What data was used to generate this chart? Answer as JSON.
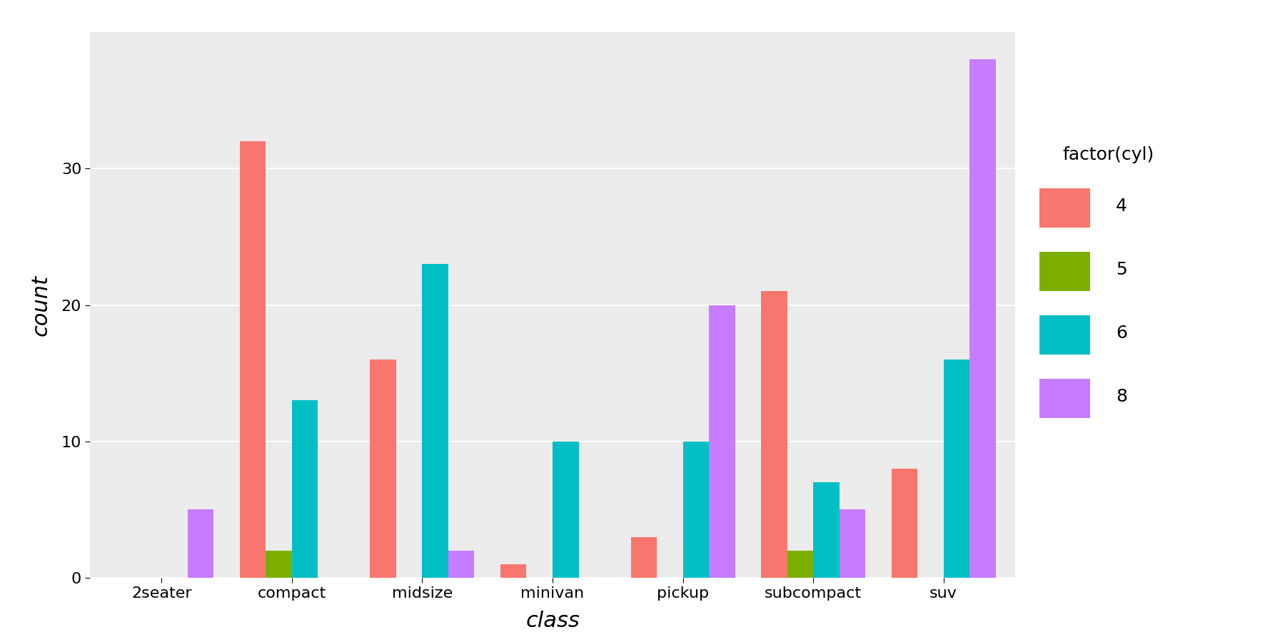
{
  "categories": [
    "2seater",
    "compact",
    "midsize",
    "minivan",
    "pickup",
    "subcompact",
    "suv"
  ],
  "cyl_labels": [
    "4",
    "5",
    "6",
    "8"
  ],
  "cyl_colors": [
    "#F8766D",
    "#7CAE00",
    "#00BFC4",
    "#C77CFF"
  ],
  "counts": {
    "2seater": {
      "4": 0,
      "5": 0,
      "6": 0,
      "8": 5
    },
    "compact": {
      "4": 32,
      "5": 2,
      "6": 13,
      "8": 0
    },
    "midsize": {
      "4": 16,
      "5": 0,
      "6": 23,
      "8": 2
    },
    "minivan": {
      "4": 1,
      "5": 0,
      "6": 10,
      "8": 0
    },
    "pickup": {
      "4": 3,
      "5": 0,
      "6": 10,
      "8": 20
    },
    "subcompact": {
      "4": 21,
      "5": 2,
      "6": 7,
      "8": 5
    },
    "suv": {
      "4": 8,
      "5": 0,
      "6": 16,
      "8": 38
    }
  },
  "xlabel": "class",
  "ylabel": "count",
  "legend_title": "factor(cyl)",
  "ylim": [
    0,
    40
  ],
  "yticks": [
    0,
    10,
    20,
    30
  ],
  "plot_bg": "#EBEBEB",
  "fig_bg": "#FFFFFF",
  "grid_color": "#FFFFFF",
  "bar_width": 0.2,
  "group_width": 1.0
}
